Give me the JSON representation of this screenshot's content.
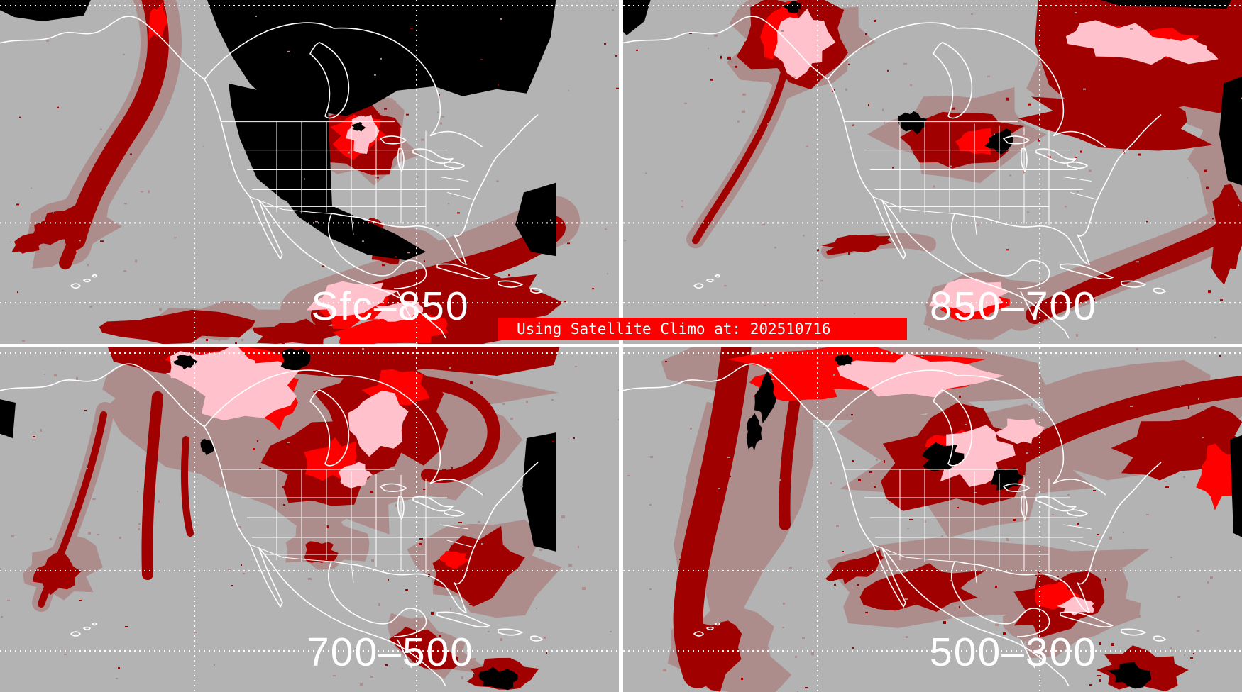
{
  "banner": {
    "text": "Using Satellite Climo at: 202510716",
    "bg_color": "#FC0000",
    "text_color": "#FFFFFF"
  },
  "panels": [
    {
      "id": "sfc-850",
      "label": "Sfc–850"
    },
    {
      "id": "850-700",
      "label": "850–700"
    },
    {
      "id": "700-500",
      "label": "700–500"
    },
    {
      "id": "500-300",
      "label": "500–300"
    }
  ],
  "palette": {
    "background_gray": "#B3B3B3",
    "cloud_thin_brown": "#AD8C8C",
    "cloud_moderate_darkred": "#A00000",
    "cloud_thick_red": "#FF0000",
    "cloud_dense_pink": "#FFC2CC",
    "no_data_black": "#000000",
    "map_lines_white": "#FFFFFF",
    "divider_white": "#FFFFFF",
    "label_white": "#FFFFFF"
  }
}
